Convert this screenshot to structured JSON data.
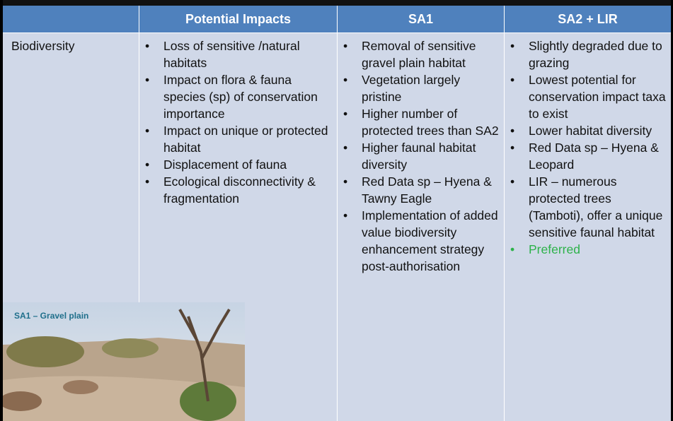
{
  "table": {
    "columns": [
      "",
      "Potential Impacts",
      "SA1",
      "SA2 + LIR"
    ],
    "rows": [
      {
        "label": "Biodiversity",
        "cells": [
          [
            "Loss of sensitive /natural habitats",
            "Impact on flora & fauna species (sp) of conservation importance",
            "Impact on unique or protected habitat",
            "Displacement of fauna",
            "Ecological disconnectivity & fragmentation"
          ],
          [
            "Removal of sensitive gravel plain habitat",
            "Vegetation largely pristine",
            "Higher number of protected trees than SA2",
            "Higher faunal habitat diversity",
            "Red Data sp – Hyena & Tawny Eagle",
            "Implementation of added value biodiversity enhancement strategy post-authorisation"
          ],
          [
            "Slightly degraded due to grazing",
            "Lowest potential for conservation impact taxa to exist",
            "Lower habitat diversity",
            "Red Data sp – Hyena & Leopard",
            "LIR – numerous protected trees (Tamboti), offer a unique sensitive faunal habitat",
            "Preferred"
          ]
        ]
      }
    ]
  },
  "photo": {
    "caption": "SA1 – Gravel plain"
  }
}
